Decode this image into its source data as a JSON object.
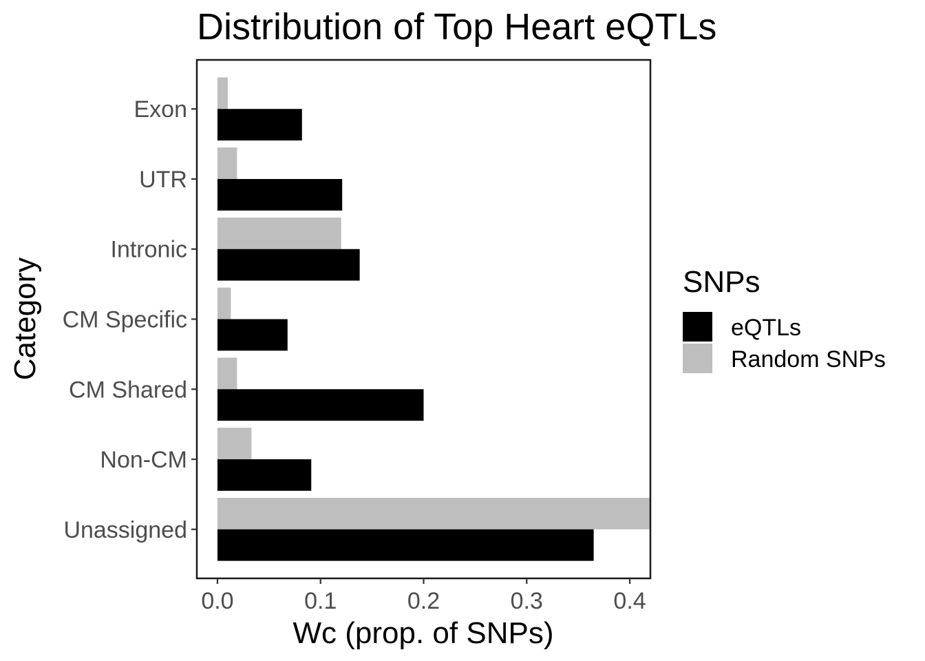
{
  "chart_data": {
    "type": "bar",
    "orientation": "horizontal",
    "title": "Distribution of Top Heart eQTLs",
    "xlabel": "Wc (prop. of SNPs)",
    "ylabel": "Category",
    "xlim": [
      -0.02,
      0.42
    ],
    "xticks": [
      "0.0",
      "0.1",
      "0.2",
      "0.3",
      "0.4"
    ],
    "xtick_values": [
      0.0,
      0.1,
      0.2,
      0.3,
      0.4
    ],
    "categories": [
      "Exon",
      "UTR",
      "Intronic",
      "CM Specific",
      "CM Shared",
      "Non-CM",
      "Unassigned"
    ],
    "series": [
      {
        "name": "eQTLs",
        "color": "#000000",
        "values": [
          0.082,
          0.121,
          0.138,
          0.068,
          0.2,
          0.091,
          0.365
        ]
      },
      {
        "name": "Random SNPs",
        "color": "#bebebe",
        "values": [
          0.01,
          0.019,
          0.12,
          0.013,
          0.019,
          0.033,
          0.43
        ]
      }
    ],
    "legend": {
      "title": "SNPs",
      "position": "right"
    },
    "grid": false
  }
}
